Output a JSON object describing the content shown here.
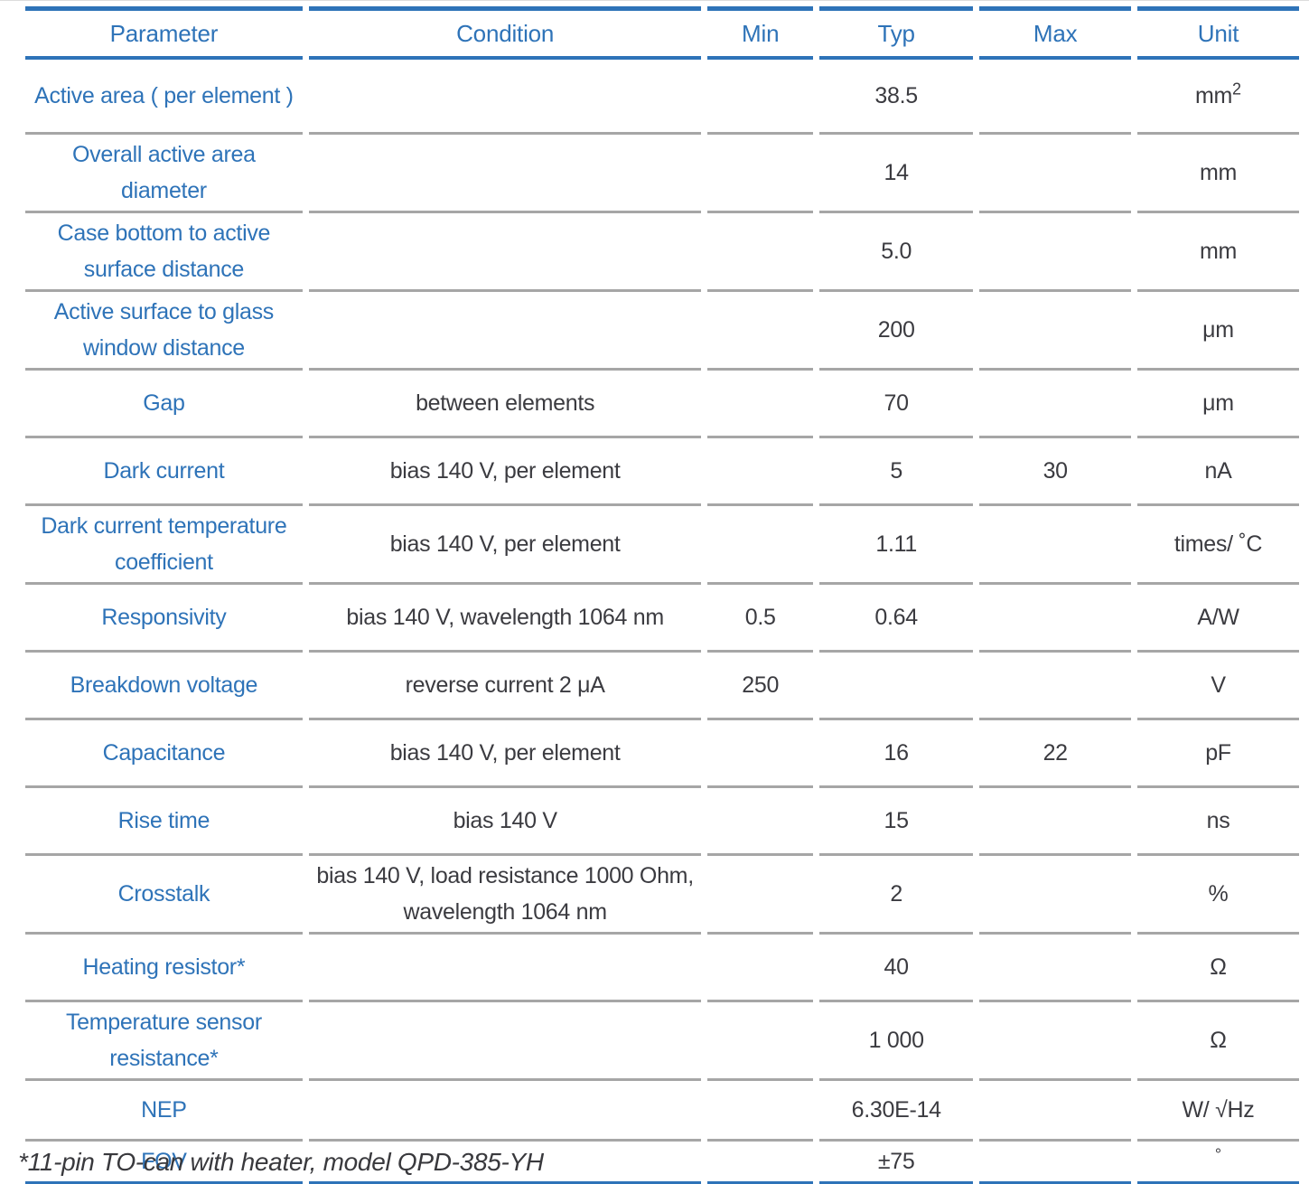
{
  "colors": {
    "accent": "#2e73b8",
    "text": "#3b3b40",
    "row_rule": "#a6a6a6"
  },
  "header": {
    "columns": [
      "Parameter",
      "Condition",
      "Min",
      "Typ",
      "Max",
      "Unit"
    ]
  },
  "rows": [
    {
      "parameter": "Active area ( per element )",
      "condition": "",
      "min": "",
      "typ": "38.5",
      "max": "",
      "unit": "mm",
      "unit_sup": "2"
    },
    {
      "parameter": "Overall active area diameter",
      "condition": "",
      "min": "",
      "typ": "14",
      "max": "",
      "unit": "mm"
    },
    {
      "parameter": "Case bottom to active surface distance",
      "condition": "",
      "min": "",
      "typ": "5.0",
      "max": "",
      "unit": "mm"
    },
    {
      "parameter": "Active surface to glass window distance",
      "condition": "",
      "min": "",
      "typ": "200",
      "max": "",
      "unit": "μm"
    },
    {
      "parameter": "Gap",
      "condition": "between elements",
      "min": "",
      "typ": "70",
      "max": "",
      "unit": "μm"
    },
    {
      "parameter": "Dark current",
      "condition": "bias 140 V, per element",
      "min": "",
      "typ": "5",
      "max": "30",
      "unit": "nA"
    },
    {
      "parameter": "Dark current temperature coefficient",
      "condition": "bias 140 V, per element",
      "min": "",
      "typ": "1.11",
      "max": "",
      "unit": "times/ ˚C"
    },
    {
      "parameter": "Responsivity",
      "condition": "bias 140 V, wavelength 1064 nm",
      "min": "0.5",
      "typ": "0.64",
      "max": "",
      "unit": "A/W"
    },
    {
      "parameter": "Breakdown voltage",
      "condition": "reverse current 2 μA",
      "min": "250",
      "typ": "",
      "max": "",
      "unit": "V"
    },
    {
      "parameter": "Capacitance",
      "condition": "bias 140 V, per element",
      "min": "",
      "typ": "16",
      "max": "22",
      "unit": "pF"
    },
    {
      "parameter": "Rise time",
      "condition": "bias 140 V",
      "min": "",
      "typ": "15",
      "max": "",
      "unit": "ns"
    },
    {
      "parameter": "Crosstalk",
      "condition": "bias 140 V, load resistance 1000 Ohm, wavelength 1064 nm",
      "min": "",
      "typ": "2",
      "max": "",
      "unit": "%"
    },
    {
      "parameter": "Heating resistor*",
      "condition": "",
      "min": "",
      "typ": "40",
      "max": "",
      "unit": "Ω"
    },
    {
      "parameter": "Temperature sensor resistance*",
      "condition": "",
      "min": "",
      "typ": "1 000",
      "max": "",
      "unit": "Ω"
    },
    {
      "parameter": "NEP",
      "condition": "",
      "min": "",
      "typ": "6.30E-14",
      "max": "",
      "unit": "W/ √Hz"
    },
    {
      "parameter": "FOV",
      "condition": "",
      "min": "",
      "typ": "±75",
      "max": "",
      "unit": "",
      "unit_sup": "°"
    }
  ],
  "footnote": "*11-pin TO-can with heater, model QPD-385-YH"
}
